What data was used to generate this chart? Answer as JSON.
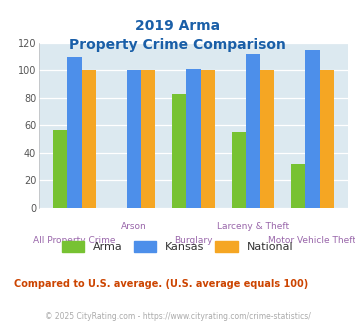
{
  "title_line1": "2019 Arma",
  "title_line2": "Property Crime Comparison",
  "categories": [
    "All Property Crime",
    "Arson",
    "Burglary",
    "Larceny & Theft",
    "Motor Vehicle Theft"
  ],
  "arma_values": [
    57,
    0,
    83,
    55,
    32
  ],
  "kansas_values": [
    110,
    100,
    101,
    112,
    115
  ],
  "national_values": [
    100,
    100,
    100,
    100,
    100
  ],
  "arma_color": "#77c232",
  "kansas_color": "#4d8fea",
  "national_color": "#f5a623",
  "bg_color": "#dce9f0",
  "ylim": [
    0,
    120
  ],
  "yticks": [
    0,
    20,
    40,
    60,
    80,
    100,
    120
  ],
  "legend_labels": [
    "Arma",
    "Kansas",
    "National"
  ],
  "x_top_labels": [
    "",
    "Arson",
    "",
    "Larceny & Theft",
    ""
  ],
  "x_bot_labels": [
    "All Property Crime",
    "",
    "Burglary",
    "",
    "Motor Vehicle Theft"
  ],
  "footnote1": "Compared to U.S. average. (U.S. average equals 100)",
  "footnote2": "© 2025 CityRating.com - https://www.cityrating.com/crime-statistics/",
  "title_color": "#1a5fa8",
  "xlabel_color": "#9966aa",
  "footnote1_color": "#cc4400",
  "footnote2_color": "#aaaaaa",
  "footnote2_link_color": "#4488cc"
}
